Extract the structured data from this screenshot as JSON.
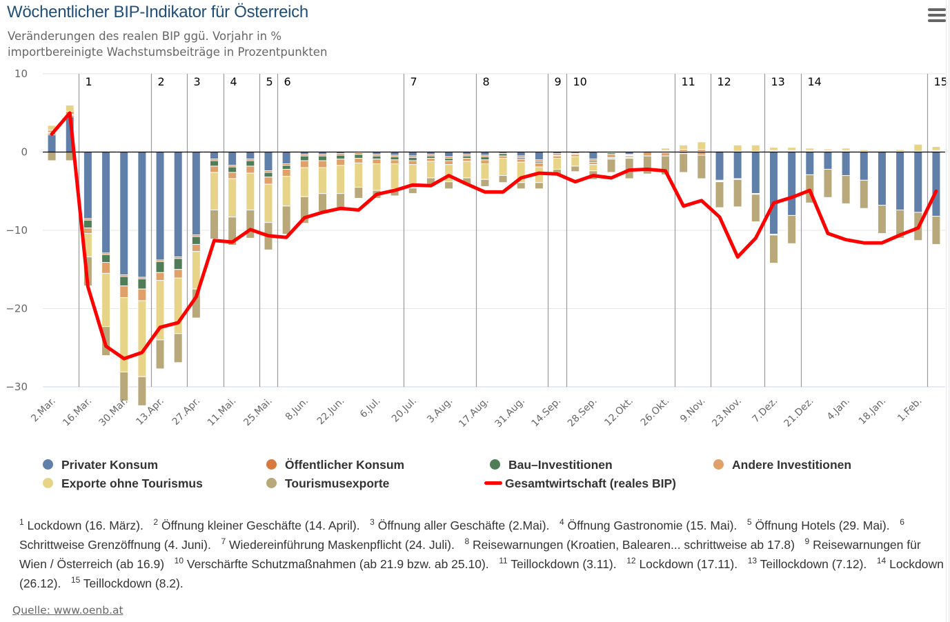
{
  "header": {
    "title": "Wöchentlicher BIP-Indikator für Österreich",
    "subtitle_line1": "Veränderungen des realen BIP ggü. Vorjahr in %",
    "subtitle_line2": "importbereinigte Wachstumsbeiträge in Prozentpunkten",
    "menu_icon": "hamburger-menu-icon"
  },
  "colors": {
    "privater_konsum": "#6080aa",
    "oeffentlicher_konsum": "#d67a40",
    "bau_investitionen": "#4e7d58",
    "andere_investitionen": "#e0a06a",
    "exporte_ohne_tourismus": "#e8d488",
    "tourismusexporte": "#b8a87a",
    "gesamtwirtschaft": "#ff0000"
  },
  "chart_data": {
    "type": "bar",
    "stacked": true,
    "title": "Wöchentlicher BIP-Indikator für Österreich",
    "subtitle": "Veränderungen des realen BIP ggü. Vorjahr in % / importbereinigte Wachstumsbeiträge in Prozentpunkten",
    "xlabel": "",
    "ylabel": "",
    "ylim": [
      -30,
      10
    ],
    "yticks": [
      10,
      0,
      -10,
      -20,
      -30
    ],
    "ytick_labels": [
      "10",
      "0",
      "−10",
      "−20",
      "−30"
    ],
    "grid": true,
    "legend_position": "bottom",
    "x_tick_labels": [
      "2.Mar.",
      "16.Mar.",
      "30.Mar.",
      "13.Apr.",
      "27.Apr.",
      "11.Mai.",
      "25.Mai.",
      "8.Jun.",
      "22.Jun.",
      "6.Jul.",
      "20.Jul.",
      "3.Aug.",
      "17.Aug.",
      "31.Aug.",
      "14.Sep.",
      "28.Sep.",
      "12.Okt.",
      "26.Okt.",
      "9.Nov.",
      "23.Nov.",
      "7.Dez.",
      "21.Dez.",
      "4.Jan.",
      "18.Jan.",
      "1.Feb."
    ],
    "x_tick_every": 2,
    "bar_count": 50,
    "series": [
      {
        "name": "Privater Konsum",
        "key": "privater_konsum",
        "values": [
          2.2,
          4.5,
          -8.5,
          -12.9,
          -15.7,
          -16.0,
          -13.8,
          -13.4,
          -10.6,
          -0.9,
          -1.7,
          -0.9,
          -2.4,
          -1.5,
          -0.3,
          -0.3,
          -0.2,
          -0.1,
          -0.3,
          -0.4,
          -0.5,
          -0.3,
          -0.6,
          -0.3,
          -0.4,
          0.0,
          -0.5,
          -1.0,
          -0.2,
          0.0,
          -0.9,
          0.0,
          -0.3,
          0.0,
          0.1,
          0.1,
          0.1,
          -3.6,
          -3.4,
          -5.3,
          -10.5,
          -8.1,
          -2.9,
          -2.2,
          -3.0,
          -3.6,
          -6.8,
          -7.4,
          -7.7,
          -8.2
        ]
      },
      {
        "name": "Öffentlicher Konsum",
        "key": "oeffentlicher_konsum",
        "values": [
          0.2,
          0.2,
          -0.2,
          -0.2,
          -0.2,
          -0.2,
          -0.2,
          -0.2,
          -0.2,
          -0.2,
          -0.2,
          -0.2,
          -0.2,
          -0.2,
          -0.2,
          -0.2,
          -0.2,
          -0.2,
          -0.2,
          -0.2,
          -0.2,
          -0.2,
          -0.2,
          -0.2,
          -0.2,
          -0.2,
          -0.2,
          -0.2,
          -0.2,
          -0.2,
          -0.2,
          -0.1,
          -0.1,
          0.1,
          0.1,
          0.2,
          0.2,
          0.1,
          0.1,
          0.1,
          0.1,
          0.1,
          0.1,
          0.1,
          0.1,
          0.1,
          0.1,
          0.1,
          0.0,
          0.1
        ]
      },
      {
        "name": "Bau-Investitionen",
        "key": "bau_investitionen",
        "values": [
          0.1,
          0.1,
          -1.0,
          -1.0,
          -1.2,
          -1.3,
          -1.4,
          -1.4,
          -1.0,
          -0.7,
          -0.7,
          -0.7,
          -0.6,
          -0.5,
          -0.6,
          -0.6,
          -0.5,
          -0.5,
          -0.4,
          -0.4,
          -0.4,
          -0.3,
          -0.3,
          -0.3,
          -0.4,
          -0.3,
          -0.2,
          -0.2,
          -0.1,
          -0.1,
          -0.2,
          -0.2,
          -0.1,
          0.0,
          -0.1,
          0.0,
          0.0,
          -0.1,
          0.0,
          0.0,
          -0.1,
          0.0,
          0.0,
          0.0,
          0.0,
          0.0,
          0.0,
          0.0,
          0.0,
          0.0
        ]
      },
      {
        "name": "Andere Investitionen",
        "key": "andere_investitionen",
        "values": [
          0.3,
          0.4,
          -0.7,
          -1.4,
          -1.5,
          -1.5,
          -1.0,
          -1.1,
          -0.9,
          -0.8,
          -0.8,
          -0.9,
          -0.9,
          -0.9,
          -0.9,
          -0.9,
          -0.8,
          -0.6,
          -0.6,
          -0.5,
          -0.5,
          -0.4,
          -0.5,
          -0.4,
          -0.5,
          -0.3,
          -0.4,
          -0.5,
          -0.3,
          -0.3,
          -0.3,
          -0.4,
          -0.2,
          -0.5,
          -0.4,
          -0.2,
          -0.4,
          -0.1,
          -0.1,
          -0.1,
          0.1,
          0.1,
          0.1,
          0.1,
          0.1,
          0.0,
          0.1,
          0.0,
          0.1,
          0.1
        ]
      },
      {
        "name": "Exporte ohne Tourismus",
        "key": "exporte_ohne_tourismus",
        "values": [
          0.6,
          0.8,
          -3.0,
          -6.8,
          -9.5,
          -9.7,
          -7.6,
          -7.1,
          -4.8,
          -4.8,
          -4.9,
          -4.7,
          -4.9,
          -3.8,
          -3.7,
          -3.3,
          -3.6,
          -3.1,
          -3.4,
          -3.2,
          -3.0,
          -2.1,
          -2.2,
          -2.1,
          -2.0,
          -2.2,
          -2.6,
          -2.0,
          -1.4,
          -1.2,
          -0.8,
          -0.2,
          -0.1,
          0.0,
          0.3,
          0.6,
          1.0,
          0.0,
          0.8,
          0.8,
          0.4,
          0.4,
          0.3,
          0.2,
          0.3,
          0.2,
          0.0,
          0.2,
          0.9,
          0.5
        ]
      },
      {
        "name": "Tourismusexporte",
        "key": "tourismusexporte",
        "values": [
          -1.1,
          -1.1,
          -3.7,
          -3.7,
          -3.7,
          -3.7,
          -3.7,
          -3.7,
          -3.7,
          -3.7,
          -3.6,
          -3.6,
          -3.5,
          -3.6,
          -3.4,
          -2.3,
          -1.8,
          -1.4,
          -1.0,
          -0.9,
          -0.7,
          -1.1,
          -0.9,
          -0.9,
          -0.9,
          -0.9,
          -0.8,
          -0.8,
          -0.7,
          -0.7,
          -1.1,
          -1.7,
          -2.6,
          -2.3,
          -2.4,
          -2.4,
          -3.0,
          -3.3,
          -3.5,
          -3.5,
          -3.6,
          -3.6,
          -3.6,
          -3.6,
          -3.6,
          -3.6,
          -3.6,
          -3.6,
          -3.6,
          -3.6
        ]
      }
    ],
    "line_series": {
      "name": "Gesamtwirtschaft (reales BIP)",
      "key": "gesamtwirtschaft",
      "values": [
        2.3,
        5.0,
        -17.2,
        -24.8,
        -26.4,
        -25.6,
        -22.4,
        -21.8,
        -18.5,
        -11.3,
        -11.5,
        -9.9,
        -10.7,
        -10.9,
        -8.4,
        -7.7,
        -7.2,
        -7.4,
        -5.4,
        -4.9,
        -4.2,
        -4.3,
        -3.0,
        -4.1,
        -5.1,
        -5.1,
        -3.3,
        -2.7,
        -2.8,
        -3.8,
        -3.0,
        -3.3,
        -2.3,
        -2.2,
        -2.4,
        -6.9,
        -6.2,
        -8.3,
        -13.4,
        -11.0,
        -6.5,
        -5.8,
        -4.9,
        -10.4,
        -11.2,
        -11.6,
        -11.6,
        -10.6,
        -9.7,
        -5.0
      ]
    },
    "annotations": [
      {
        "label": "1",
        "at_bar": 2
      },
      {
        "label": "2",
        "at_bar": 6
      },
      {
        "label": "3",
        "at_bar": 8
      },
      {
        "label": "4",
        "at_bar": 10
      },
      {
        "label": "5",
        "at_bar": 12
      },
      {
        "label": "6",
        "at_bar": 13
      },
      {
        "label": "7",
        "at_bar": 20
      },
      {
        "label": "8",
        "at_bar": 24
      },
      {
        "label": "9",
        "at_bar": 28
      },
      {
        "label": "10",
        "at_bar": 29
      },
      {
        "label": "11",
        "at_bar": 35
      },
      {
        "label": "12",
        "at_bar": 37
      },
      {
        "label": "13",
        "at_bar": 40
      },
      {
        "label": "14",
        "at_bar": 42
      },
      {
        "label": "15",
        "at_bar": 49
      }
    ]
  },
  "legend": {
    "items": [
      {
        "label": "Privater Konsum",
        "key": "privater_konsum",
        "type": "dot"
      },
      {
        "label": "Öffentlicher Konsum",
        "key": "oeffentlicher_konsum",
        "type": "dot"
      },
      {
        "label": "Bau–Investitionen",
        "key": "bau_investitionen",
        "type": "dot"
      },
      {
        "label": "Andere Investitionen",
        "key": "andere_investitionen",
        "type": "dot"
      },
      {
        "label": "Exporte ohne Tourismus",
        "key": "exporte_ohne_tourismus",
        "type": "dot"
      },
      {
        "label": "Tourismusexporte",
        "key": "tourismusexporte",
        "type": "dot"
      },
      {
        "label": "Gesamtwirtschaft (reales BIP)",
        "key": "gesamtwirtschaft",
        "type": "line"
      }
    ]
  },
  "notes": [
    {
      "num": "1",
      "text": "Lockdown (16. März)."
    },
    {
      "num": "2",
      "text": "Öffnung kleiner Geschäfte (14. April)."
    },
    {
      "num": "3",
      "text": "Öffnung aller Geschäfte (2.Mai)."
    },
    {
      "num": "4",
      "text": "Öffnung Gastronomie (15. Mai)."
    },
    {
      "num": "5",
      "text": "Öffnung Hotels (29. Mai)."
    },
    {
      "num": "6",
      "text": "Schrittweise Grenzöffnung (4. Juni)."
    },
    {
      "num": "7",
      "text": "Wiedereinführung Maskenpflicht (24. Juli)."
    },
    {
      "num": "8",
      "text": "Reisewarnungen (Kroatien, Balearen... schrittweise ab 17.8)"
    },
    {
      "num": "9",
      "text": "Reisewarnungen für Wien / Österreich (ab 16.9)"
    },
    {
      "num": "10",
      "text": "Verschärfte Schutzmaßnahmen (ab 21.9 bzw. ab 25.10)."
    },
    {
      "num": "11",
      "text": "Teillockdown (3.11)."
    },
    {
      "num": "12",
      "text": "Lockdown (17.11)."
    },
    {
      "num": "13",
      "text": "Teillockdown (7.12)."
    },
    {
      "num": "14",
      "text": "Lockdown (26.12)."
    },
    {
      "num": "15",
      "text": "Teillockdown (8.2)."
    }
  ],
  "source": {
    "label": "Quelle: www.oenb.at"
  }
}
